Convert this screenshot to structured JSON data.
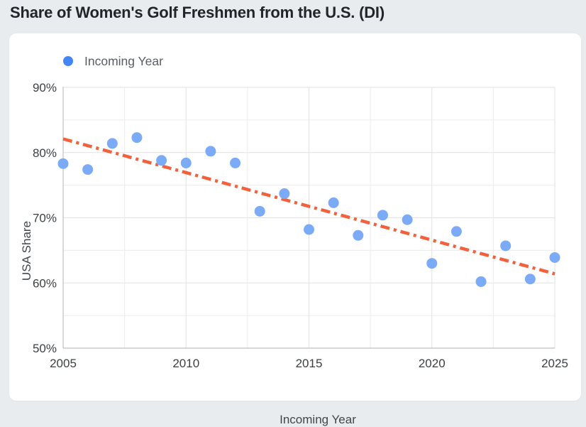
{
  "header": {
    "title": "Share of Women's Golf Freshmen from the U.S. (DI)"
  },
  "chart_data": {
    "type": "scatter",
    "title": "Share of Women's Golf Freshmen from the U.S. (DI)",
    "xlabel": "Incoming Year",
    "ylabel": "USA Share",
    "legend": {
      "label": "Incoming Year",
      "position": "top-left"
    },
    "x": [
      2005,
      2006,
      2007,
      2008,
      2009,
      2010,
      2011,
      2012,
      2013,
      2014,
      2015,
      2016,
      2017,
      2018,
      2019,
      2020,
      2021,
      2022,
      2023,
      2024,
      2025
    ],
    "values": [
      78.3,
      77.4,
      81.4,
      82.3,
      78.8,
      78.4,
      80.2,
      78.4,
      71.0,
      73.7,
      68.2,
      72.3,
      67.3,
      70.4,
      69.7,
      63.0,
      67.9,
      60.2,
      65.7,
      60.6,
      63.9
    ],
    "trendline": {
      "type": "linear",
      "style": "dash-dot",
      "x": [
        2005,
        2025
      ],
      "y": [
        82.1,
        61.4
      ]
    },
    "xlim": [
      2005,
      2025
    ],
    "ylim": [
      50,
      90
    ],
    "xticks": {
      "values": [
        2005,
        2010,
        2015,
        2020,
        2025
      ],
      "labels": [
        "2005",
        "2010",
        "2015",
        "2020",
        "2025"
      ]
    },
    "yticks": {
      "values": [
        50,
        60,
        70,
        80,
        90
      ],
      "labels": [
        "50%",
        "60%",
        "70%",
        "80%",
        "90%"
      ]
    },
    "grid": {
      "on": true,
      "x_minor_step": 2.5,
      "y_minor_step": 5
    },
    "colors": {
      "point": "#7baaf7",
      "legend_marker": "#4285f4",
      "trendline": "#f4603c"
    }
  }
}
